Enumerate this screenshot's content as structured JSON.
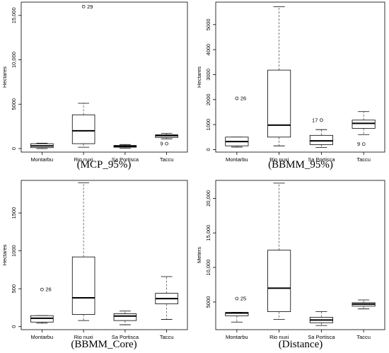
{
  "chart_data": [
    {
      "type": "box",
      "caption": "(MCP_95%)",
      "ylabel": "Hectares",
      "categories": [
        "Montarbu",
        "Rio nuxi",
        "Sa Portisca",
        "Taccu"
      ],
      "ylim": [
        -400,
        16500
      ],
      "yticks": [
        0,
        5000,
        10000,
        15000
      ],
      "ytick_labels": [
        "0",
        "5000",
        "10,000",
        "15,000"
      ],
      "boxes": [
        {
          "min": 0,
          "q1": 100,
          "median": 300,
          "q3": 550,
          "max": 600,
          "outliers": []
        },
        {
          "min": 150,
          "q1": 550,
          "median": 2000,
          "q3": 3800,
          "max": 5100,
          "outliers": [
            {
              "value": 16000,
              "label": "29"
            }
          ]
        },
        {
          "min": 50,
          "q1": 150,
          "median": 250,
          "q3": 350,
          "max": 450,
          "outliers": []
        },
        {
          "min": 1100,
          "q1": 1250,
          "median": 1450,
          "q3": 1550,
          "max": 1700,
          "outliers": [
            {
              "value": 550,
              "label": "9"
            }
          ]
        }
      ]
    },
    {
      "type": "box",
      "caption": "(BBMM_95%)",
      "ylabel": "Hectares",
      "categories": [
        "Montarbu",
        "Rio nuxi",
        "Sa Portisca",
        "Taccu"
      ],
      "ylim": [
        -100,
        5900
      ],
      "yticks": [
        0,
        1000,
        2000,
        3000,
        4000,
        5000
      ],
      "ytick_labels": [
        "0",
        "1000",
        "2000",
        "3000",
        "4000",
        "5000"
      ],
      "boxes": [
        {
          "min": 100,
          "q1": 150,
          "median": 320,
          "q3": 500,
          "max": 500,
          "outliers": [
            {
              "value": 2050,
              "label": "26"
            }
          ]
        },
        {
          "min": 150,
          "q1": 500,
          "median": 980,
          "q3": 3180,
          "max": 5720,
          "outliers": []
        },
        {
          "min": 80,
          "q1": 200,
          "median": 350,
          "q3": 570,
          "max": 800,
          "outliers": [
            {
              "value": 1180,
              "label": "17"
            }
          ]
        },
        {
          "min": 600,
          "q1": 850,
          "median": 1050,
          "q3": 1180,
          "max": 1520,
          "outliers": [
            {
              "value": 220,
              "label": "9"
            }
          ]
        }
      ]
    },
    {
      "type": "box",
      "caption": "(BBMM_Core)",
      "ylabel": "Hectares",
      "categories": [
        "Montarbu",
        "Rio nuxi",
        "Sa Portisca",
        "Taccu"
      ],
      "ylim": [
        -40,
        1930
      ],
      "yticks": [
        0,
        500,
        1000,
        1500
      ],
      "ytick_labels": [
        "0",
        "500",
        "1000",
        "1500"
      ],
      "boxes": [
        {
          "min": 45,
          "q1": 60,
          "median": 110,
          "q3": 145,
          "max": 145,
          "outliers": [
            {
              "value": 490,
              "label": "26"
            }
          ]
        },
        {
          "min": 80,
          "q1": 160,
          "median": 380,
          "q3": 920,
          "max": 1900,
          "outliers": []
        },
        {
          "min": 25,
          "q1": 80,
          "median": 140,
          "q3": 170,
          "max": 205,
          "outliers": []
        },
        {
          "min": 95,
          "q1": 300,
          "median": 370,
          "q3": 440,
          "max": 660,
          "outliers": []
        }
      ]
    },
    {
      "type": "box",
      "caption": "(Distance)",
      "ylabel": "Meters",
      "categories": [
        "Montarbu",
        "Rio nuxi",
        "Sa Portisca",
        "Taccu"
      ],
      "ylim": [
        1000,
        22600
      ],
      "yticks": [
        5000,
        10000,
        15000,
        20000
      ],
      "ytick_labels": [
        "5000",
        "10,000",
        "15,000",
        "20,000"
      ],
      "boxes": [
        {
          "min": 2100,
          "q1": 3000,
          "median": 3400,
          "q3": 3500,
          "max": 3500,
          "outliers": [
            {
              "value": 5500,
              "label": "25"
            }
          ]
        },
        {
          "min": 2500,
          "q1": 3600,
          "median": 7000,
          "q3": 12500,
          "max": 22200,
          "outliers": []
        },
        {
          "min": 1600,
          "q1": 2000,
          "median": 2400,
          "q3": 2800,
          "max": 3600,
          "outliers": []
        },
        {
          "min": 4000,
          "q1": 4400,
          "median": 4700,
          "q3": 4900,
          "max": 5300,
          "outliers": []
        }
      ]
    }
  ]
}
